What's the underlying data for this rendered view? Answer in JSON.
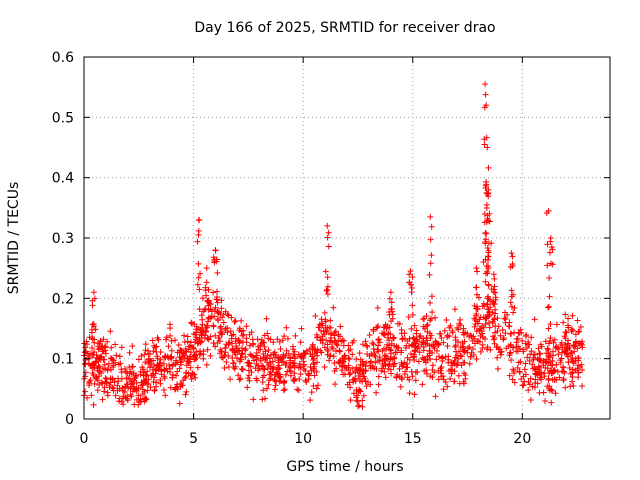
{
  "chart_data": {
    "type": "scatter",
    "title": "Day 166 of 2025, SRMTID for receiver drao",
    "xlabel": "GPS time / hours",
    "ylabel": "SRMTID / TECUs",
    "xlim": [
      0,
      24
    ],
    "ylim": [
      0,
      0.6
    ],
    "x_ticks": [
      0,
      5,
      10,
      15,
      20
    ],
    "x_tick_labels": [
      "0",
      "5",
      "10",
      "15",
      "20"
    ],
    "y_ticks": [
      0,
      0.1,
      0.2,
      0.3,
      0.4,
      0.5,
      0.6
    ],
    "y_tick_labels": [
      "0",
      "0.1",
      "0.2",
      "0.3",
      "0.4",
      "0.5",
      "0.6"
    ],
    "grid": true,
    "marker": "+",
    "color": "#ff0000",
    "x_range_of_data": [
      0,
      22.8
    ],
    "trend_profile": [
      [
        0.0,
        0.085
      ],
      [
        0.5,
        0.095
      ],
      [
        1.0,
        0.08
      ],
      [
        1.5,
        0.07
      ],
      [
        2.0,
        0.06
      ],
      [
        2.5,
        0.055
      ],
      [
        3.0,
        0.08
      ],
      [
        3.5,
        0.09
      ],
      [
        4.0,
        0.085
      ],
      [
        4.5,
        0.09
      ],
      [
        5.0,
        0.11
      ],
      [
        5.5,
        0.15
      ],
      [
        6.0,
        0.16
      ],
      [
        6.5,
        0.13
      ],
      [
        7.0,
        0.12
      ],
      [
        7.5,
        0.1
      ],
      [
        8.0,
        0.1
      ],
      [
        8.5,
        0.1
      ],
      [
        9.0,
        0.095
      ],
      [
        9.5,
        0.1
      ],
      [
        10.0,
        0.095
      ],
      [
        10.5,
        0.1
      ],
      [
        11.0,
        0.13
      ],
      [
        11.5,
        0.11
      ],
      [
        12.0,
        0.09
      ],
      [
        12.5,
        0.06
      ],
      [
        13.0,
        0.1
      ],
      [
        13.5,
        0.12
      ],
      [
        14.0,
        0.11
      ],
      [
        14.5,
        0.1
      ],
      [
        15.0,
        0.11
      ],
      [
        15.5,
        0.12
      ],
      [
        16.0,
        0.1
      ],
      [
        16.5,
        0.1
      ],
      [
        17.0,
        0.11
      ],
      [
        17.5,
        0.12
      ],
      [
        18.0,
        0.15
      ],
      [
        18.5,
        0.17
      ],
      [
        19.0,
        0.14
      ],
      [
        19.5,
        0.12
      ],
      [
        20.0,
        0.11
      ],
      [
        20.5,
        0.1
      ],
      [
        21.0,
        0.08
      ],
      [
        21.5,
        0.09
      ],
      [
        22.0,
        0.11
      ],
      [
        22.8,
        0.12
      ]
    ],
    "spikes": [
      {
        "x": 0.45,
        "y": 0.21
      },
      {
        "x": 5.25,
        "y": 0.33
      },
      {
        "x": 5.6,
        "y": 0.25
      },
      {
        "x": 6.0,
        "y": 0.28
      },
      {
        "x": 11.1,
        "y": 0.32
      },
      {
        "x": 14.0,
        "y": 0.21
      },
      {
        "x": 14.9,
        "y": 0.245
      },
      {
        "x": 15.8,
        "y": 0.335
      },
      {
        "x": 17.9,
        "y": 0.25
      },
      {
        "x": 18.3,
        "y": 0.555
      },
      {
        "x": 18.35,
        "y": 0.52
      },
      {
        "x": 18.4,
        "y": 0.45
      },
      {
        "x": 18.45,
        "y": 0.38
      },
      {
        "x": 18.5,
        "y": 0.34
      },
      {
        "x": 18.7,
        "y": 0.24
      },
      {
        "x": 19.5,
        "y": 0.275
      },
      {
        "x": 21.2,
        "y": 0.345
      },
      {
        "x": 21.3,
        "y": 0.3
      }
    ]
  }
}
